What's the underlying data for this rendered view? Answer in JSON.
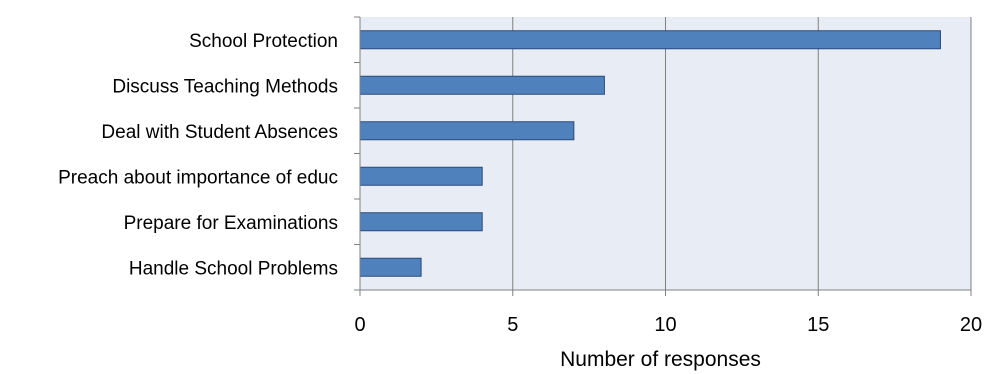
{
  "chart_data": {
    "type": "bar",
    "orientation": "horizontal",
    "categories": [
      "School Protection",
      "Discuss Teaching Methods",
      "Deal with Student Absences",
      "Preach about importance of educ",
      "Prepare for Examinations",
      "Handle School Problems"
    ],
    "values": [
      19,
      8,
      7,
      4,
      4,
      2
    ],
    "xlabel": "Number of responses",
    "ylabel": "",
    "title": "",
    "xlim": [
      0,
      20
    ],
    "xticks": [
      "0",
      "5",
      "10",
      "15",
      "20"
    ],
    "grid": "vertical",
    "legend": "none"
  },
  "colors": {
    "bar_fill": "#4f81bd",
    "bar_edge": "#2a4a7a",
    "plot_background": "#e8ecf5",
    "gridline": "#808080",
    "axis": "#808080"
  }
}
